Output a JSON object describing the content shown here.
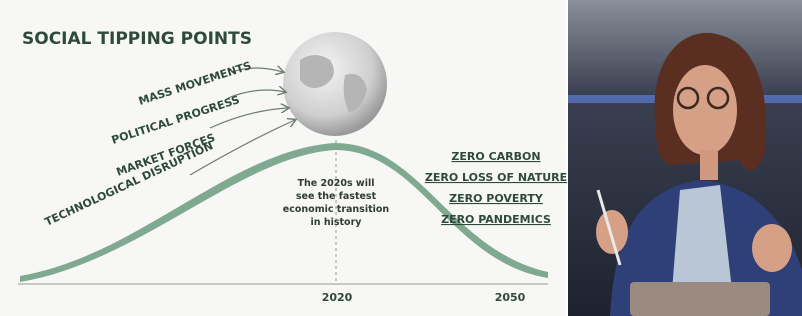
{
  "slide": {
    "title": "SOCIAL TIPPING POINTS",
    "drivers": [
      "MASS MOVEMENTS",
      "POLITICAL PROGRESS",
      "MARKET FORCES",
      "TECHNOLOGICAL DISRUPTION"
    ],
    "note": [
      "The 2020s will",
      "see the fastest",
      "economic transition",
      "in history"
    ],
    "goals": [
      "ZERO CARBON",
      "ZERO LOSS OF NATURE",
      "ZERO POVERTY",
      "ZERO PANDEMICS"
    ],
    "axis_labels": [
      "2020",
      "2050"
    ]
  }
}
